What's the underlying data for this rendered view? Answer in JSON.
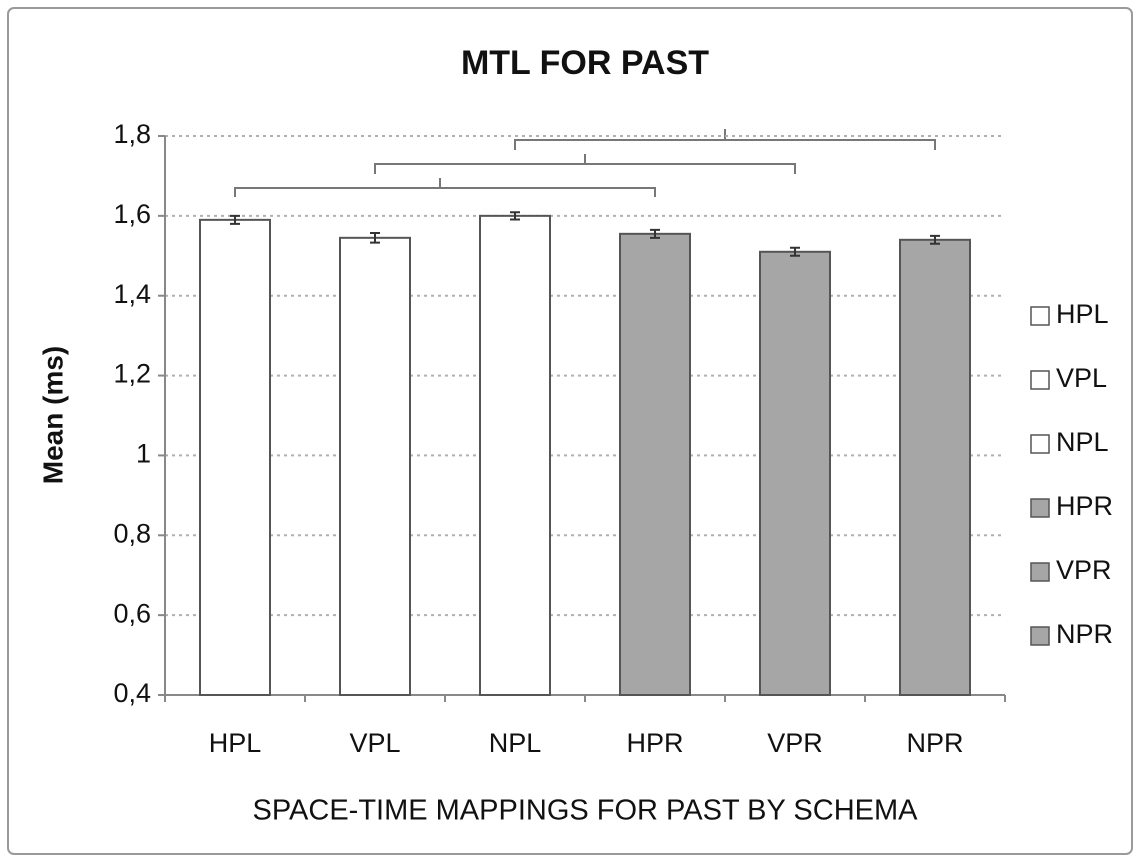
{
  "chart_data": {
    "type": "bar",
    "title": "MTL FOR PAST",
    "y_label": "Mean (ms)",
    "x_label": "SPACE-TIME MAPPINGS FOR PAST BY SCHEMA",
    "categories": [
      "HPL",
      "VPL",
      "NPL",
      "HPR",
      "VPR",
      "NPR"
    ],
    "values": [
      1.59,
      1.545,
      1.6,
      1.555,
      1.51,
      1.54
    ],
    "errors": [
      0.01,
      0.012,
      0.009,
      0.01,
      0.01,
      0.01
    ],
    "colors": [
      "#ffffff",
      "#ffffff",
      "#ffffff",
      "#a6a6a6",
      "#a6a6a6",
      "#a6a6a6"
    ],
    "ylim": [
      0.4,
      1.8
    ],
    "yticks": [
      {
        "value": 0.4,
        "label": "0,4"
      },
      {
        "value": 0.6,
        "label": "0,6"
      },
      {
        "value": 0.8,
        "label": "0,8"
      },
      1,
      {
        "value": 1.2,
        "label": "1,2"
      },
      {
        "value": 1.4,
        "label": "1,4"
      },
      {
        "value": 1.6,
        "label": "1,6"
      },
      {
        "value": 1.8,
        "label": "1,8"
      }
    ],
    "grid": true,
    "legend": "right"
  }
}
